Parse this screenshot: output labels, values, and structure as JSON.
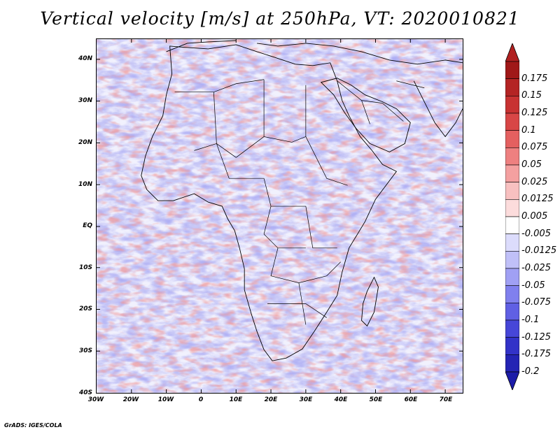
{
  "title": "Vertical velocity [m/s] at 250hPa, VT: 2020010821",
  "map": {
    "region": "Africa",
    "variable": "vertical velocity",
    "level": "250hPa",
    "valid_time": "2020010821",
    "lat_range": [
      -40,
      45
    ],
    "lon_range": [
      -30,
      75
    ],
    "lat_ticks": [
      {
        "value": 40,
        "label": "40N"
      },
      {
        "value": 30,
        "label": "30N"
      },
      {
        "value": 20,
        "label": "20N"
      },
      {
        "value": 10,
        "label": "10N"
      },
      {
        "value": 0,
        "label": "EQ"
      },
      {
        "value": -10,
        "label": "10S"
      },
      {
        "value": -20,
        "label": "20S"
      },
      {
        "value": -30,
        "label": "30S"
      },
      {
        "value": -40,
        "label": "40S"
      }
    ],
    "lon_ticks": [
      {
        "value": -30,
        "label": "30W"
      },
      {
        "value": -20,
        "label": "20W"
      },
      {
        "value": -10,
        "label": "10W"
      },
      {
        "value": 0,
        "label": "0"
      },
      {
        "value": 10,
        "label": "10E"
      },
      {
        "value": 20,
        "label": "20E"
      },
      {
        "value": 30,
        "label": "30E"
      },
      {
        "value": 40,
        "label": "40E"
      },
      {
        "value": 50,
        "label": "50E"
      },
      {
        "value": 60,
        "label": "60E"
      },
      {
        "value": 70,
        "label": "70E"
      }
    ]
  },
  "colorbar": {
    "levels": [
      {
        "label": "0.175",
        "color": "#a01818"
      },
      {
        "label": "0.15",
        "color": "#b42424"
      },
      {
        "label": "0.125",
        "color": "#c83232"
      },
      {
        "label": "0.1",
        "color": "#d84646"
      },
      {
        "label": "0.075",
        "color": "#e46060"
      },
      {
        "label": "0.05",
        "color": "#ee8080"
      },
      {
        "label": "0.025",
        "color": "#f4a0a0"
      },
      {
        "label": "0.0125",
        "color": "#f8c0c0"
      },
      {
        "label": "0.005",
        "color": "#fcdcdc"
      },
      {
        "label": "-0.005",
        "color": "#ffffff"
      },
      {
        "label": "-0.0125",
        "color": "#dcdcfc"
      },
      {
        "label": "-0.025",
        "color": "#c0c0f8"
      },
      {
        "label": "-0.05",
        "color": "#a0a0f4"
      },
      {
        "label": "-0.075",
        "color": "#8080ee"
      },
      {
        "label": "-0.1",
        "color": "#6060e4"
      },
      {
        "label": "-0.125",
        "color": "#4646d8"
      },
      {
        "label": "-0.175",
        "color": "#3232c8"
      },
      {
        "label": "-0.2",
        "color": "#2424b4"
      }
    ],
    "top_arrow_color": "#b02020",
    "bottom_arrow_color": "#1c1ca8"
  },
  "colors": {
    "positive": "#d84646",
    "negative": "#5a5ae0",
    "background": "#e6e6ff",
    "coast": "#000000"
  },
  "footer": "GrADS: IGES/COLA"
}
